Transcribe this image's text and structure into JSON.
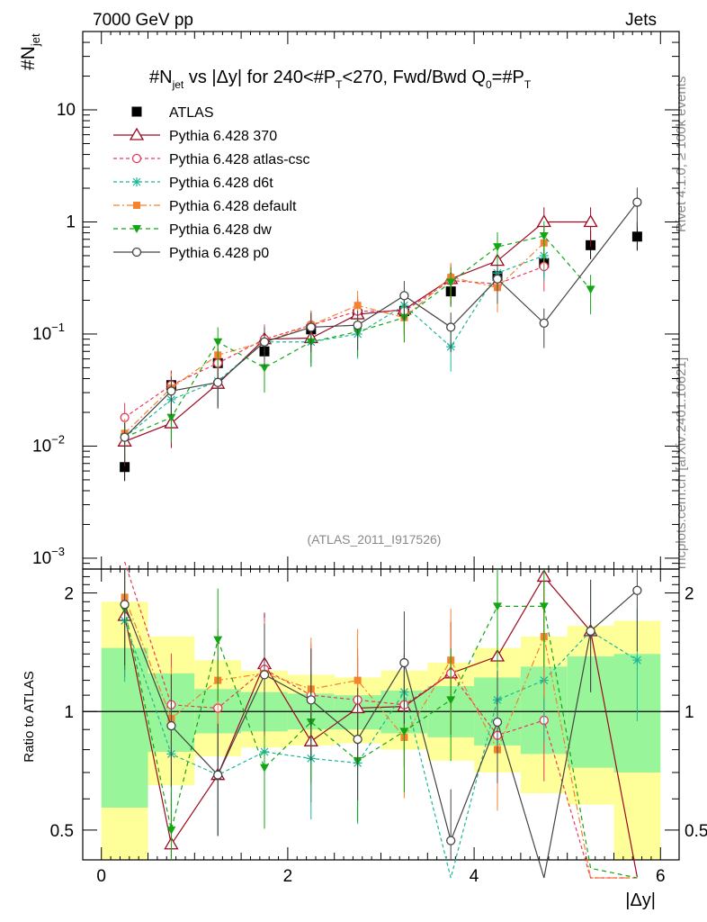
{
  "chart_data": {
    "type": "scatter",
    "header_left": "7000 GeV pp",
    "header_right": "Jets",
    "title": "#N_jet vs |Δy| for 240<#P_T<270, Fwd/Bwd Q_0=#P_T",
    "title_parts": {
      "a": "#N",
      "a_sub": "jet",
      "b": " vs |Δy| for 240<#",
      "c": "P",
      "c_sub": "T",
      "d": "<270, Fwd/Bwd Q",
      "d_sub": "0",
      "e": "=#",
      "f": "P",
      "f_sub": "T"
    },
    "ylabel_main": "#N",
    "ylabel_main_sub": "jet",
    "ylabel_ratio": "Ratio to ATLAS",
    "xlabel": "|Δy|",
    "side_label_top": "Rivet 4.1.0, ≥ 100k events",
    "side_label_bottom": "mcplots.cern.ch [arXiv:2401.10621]",
    "watermark": "(ATLAS_2011_I917526)",
    "xlim": [
      -0.2,
      6.2
    ],
    "ylim_main": [
      0.0008,
      50
    ],
    "ylim_ratio": [
      0.42,
      2.3
    ],
    "xticks": [
      "0",
      "2",
      "4",
      "6"
    ],
    "yticks_main": [
      {
        "m": "10",
        "e": "−3",
        "v": 0.001
      },
      {
        "m": "10",
        "e": "−2",
        "v": 0.01
      },
      {
        "m": "10",
        "e": "−1",
        "v": 0.1
      },
      {
        "m": "1",
        "e": "",
        "v": 1
      },
      {
        "m": "10",
        "e": "",
        "v": 10
      }
    ],
    "yticks_ratio": [
      {
        "t": "0.5",
        "v": 0.5
      },
      {
        "t": "1",
        "v": 1
      },
      {
        "t": "2",
        "v": 2
      }
    ],
    "x": [
      0.25,
      0.75,
      1.25,
      1.75,
      2.25,
      2.75,
      3.25,
      3.75,
      4.25,
      4.75,
      5.25,
      5.75
    ],
    "bands": {
      "edges": [
        0,
        0.5,
        1,
        1.5,
        2,
        2.5,
        3,
        3.5,
        4,
        4.5,
        5,
        5.5,
        6
      ],
      "yellow_lo": [
        0.3,
        0.65,
        0.77,
        0.81,
        0.82,
        0.83,
        0.8,
        0.75,
        0.7,
        0.62,
        0.58,
        0.3
      ],
      "yellow_hi": [
        1.9,
        1.55,
        1.35,
        1.27,
        1.24,
        1.22,
        1.27,
        1.33,
        1.45,
        1.55,
        1.65,
        1.7
      ],
      "green_lo": [
        0.57,
        0.79,
        0.88,
        0.89,
        0.9,
        0.9,
        0.88,
        0.86,
        0.82,
        0.78,
        0.72,
        0.7
      ],
      "green_hi": [
        1.45,
        1.25,
        1.14,
        1.12,
        1.11,
        1.1,
        1.13,
        1.16,
        1.22,
        1.3,
        1.38,
        1.4
      ]
    },
    "series": [
      {
        "name": "ATLAS",
        "color": "#000000",
        "marker": "square",
        "dash": "",
        "values": [
          0.0065,
          0.035,
          0.055,
          0.07,
          0.11,
          0.15,
          0.16,
          0.24,
          0.33,
          0.43,
          0.62,
          0.74
        ],
        "ratio": [
          1,
          1,
          1,
          1,
          1,
          1,
          1,
          1,
          1,
          1,
          1,
          1
        ]
      },
      {
        "name": "Pythia 6.428 370",
        "color": "#9b0a23",
        "marker": "tri-up-open",
        "dash": "",
        "values": [
          0.011,
          0.016,
          0.036,
          0.09,
          0.092,
          0.15,
          0.165,
          0.31,
          0.45,
          1.0,
          1.0,
          null
        ],
        "ratio": [
          1.75,
          0.46,
          0.69,
          1.32,
          0.84,
          1.02,
          1.03,
          1.25,
          1.38,
          2.2,
          1.6,
          0.38
        ],
        "show_line": true
      },
      {
        "name": "Pythia 6.428 atlas-csc",
        "color": "#e83a5a",
        "marker": "circle-open",
        "dash": "4,3",
        "values": [
          0.018,
          0.035,
          0.055,
          0.09,
          0.12,
          0.16,
          0.16,
          0.3,
          0.28,
          0.4,
          null,
          null
        ],
        "ratio": [
          2.4,
          1.04,
          1.02,
          1.28,
          1.1,
          1.07,
          1.04,
          1.25,
          0.87,
          0.95,
          0.3,
          0.3
        ],
        "show_line": true
      },
      {
        "name": "Pythia 6.428 d6t",
        "color": "#1ab89a",
        "marker": "star",
        "dash": "4,3",
        "values": [
          0.012,
          0.026,
          0.038,
          0.085,
          0.085,
          0.1,
          0.18,
          0.077,
          0.35,
          0.5,
          null,
          null
        ],
        "ratio": [
          1.7,
          0.78,
          0.69,
          0.79,
          0.76,
          0.74,
          1.12,
          0.33,
          1.07,
          1.2,
          1.6,
          1.35
        ],
        "show_line": true
      },
      {
        "name": "Pythia 6.428 default",
        "color": "#f5822f",
        "marker": "square-filled",
        "dash": "7,3,2,3",
        "values": [
          0.013,
          0.033,
          0.065,
          0.085,
          0.12,
          0.18,
          0.14,
          0.32,
          0.26,
          0.65,
          null,
          null
        ],
        "ratio": [
          1.95,
          0.96,
          1.2,
          1.25,
          1.14,
          1.2,
          0.86,
          1.35,
          0.8,
          1.55,
          0.3,
          0.3
        ],
        "show_line": true
      },
      {
        "name": "Pythia 6.428 dw",
        "color": "#14a514",
        "marker": "tri-down-filled",
        "dash": "5,4",
        "values": [
          0.012,
          0.018,
          0.085,
          0.05,
          0.085,
          0.105,
          0.14,
          0.29,
          0.6,
          0.75,
          0.25,
          null
        ],
        "ratio": [
          1.82,
          0.5,
          1.52,
          0.72,
          0.94,
          0.75,
          0.89,
          1.07,
          1.85,
          1.85,
          0.4,
          0.3
        ],
        "show_line": true
      },
      {
        "name": "Pythia 6.428 p0",
        "color": "#444444",
        "marker": "circle-open",
        "dash": "",
        "values": [
          0.012,
          0.031,
          0.037,
          0.085,
          0.115,
          0.12,
          0.22,
          0.115,
          0.31,
          0.125,
          null,
          1.5
        ],
        "ratio": [
          1.87,
          0.92,
          0.69,
          1.24,
          1.07,
          0.85,
          1.33,
          0.47,
          0.94,
          0.3,
          1.6,
          2.03
        ],
        "show_line": true
      }
    ]
  }
}
